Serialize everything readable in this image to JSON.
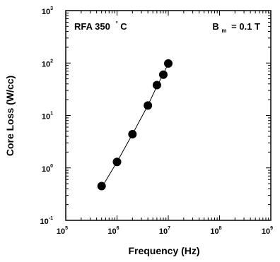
{
  "chart_data": {
    "type": "scatter",
    "x_scale": "log",
    "y_scale": "log",
    "xlim": [
      100000,
      1000000000
    ],
    "ylim": [
      0.1,
      1000
    ],
    "xlabel": "Frequency (Hz)",
    "ylabel": "Core Loss (W/cc)",
    "grid": false,
    "x_ticks": [
      {
        "base": "10",
        "exp": "5",
        "value": 100000
      },
      {
        "base": "10",
        "exp": "6",
        "value": 1000000
      },
      {
        "base": "10",
        "exp": "7",
        "value": 10000000
      },
      {
        "base": "10",
        "exp": "8",
        "value": 100000000
      }
    ],
    "y_ticks": [
      {
        "base": "10",
        "exp": "-1",
        "value": 0.1
      },
      {
        "base": "10",
        "exp": "0",
        "value": 1
      },
      {
        "base": "10",
        "exp": "1",
        "value": 10
      },
      {
        "base": "10",
        "exp": "2",
        "value": 100
      },
      {
        "base": "10",
        "exp": "3",
        "value": 1000
      }
    ],
    "annotations": {
      "material": "RFA 350",
      "temp_unit": "°C",
      "flux_symbol": "B",
      "flux_subscript": "m",
      "flux_value": "= 0.1 T"
    },
    "series": [
      {
        "x": [
          500000,
          1000000,
          2000000,
          4000000,
          6000000,
          8000000,
          10000000
        ],
        "y": [
          0.45,
          1.3,
          4.4,
          15.5,
          38,
          60,
          98
        ]
      }
    ],
    "fit_curve": {
      "x": [
        500000,
        1000000,
        2000000,
        4000000,
        6000000,
        8000000,
        10000000
      ],
      "y": [
        0.42,
        1.3,
        4.4,
        15.5,
        36,
        62,
        98
      ]
    }
  }
}
